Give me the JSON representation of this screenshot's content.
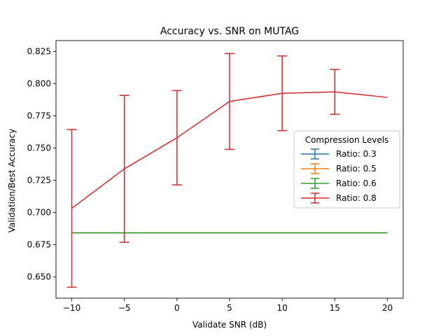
{
  "chart_data": {
    "type": "line",
    "title": "Accuracy vs. SNR on MUTAG",
    "xlabel": "Validate SNR (dB)",
    "ylabel": "Validation/Best Accuracy",
    "x": [
      -10,
      -5,
      0,
      5,
      10,
      15,
      20
    ],
    "x_ticks": [
      -10,
      -5,
      0,
      5,
      10,
      15,
      20
    ],
    "x_tick_labels": [
      "−10",
      "−5",
      "0",
      "5",
      "10",
      "15",
      "20"
    ],
    "y_ticks": [
      0.65,
      0.675,
      0.7,
      0.725,
      0.75,
      0.775,
      0.8,
      0.825
    ],
    "y_tick_labels": [
      "0.650",
      "0.675",
      "0.700",
      "0.725",
      "0.750",
      "0.775",
      "0.800",
      "0.825"
    ],
    "xlim": [
      -11.5,
      21.5
    ],
    "ylim": [
      0.6335,
      0.8334
    ],
    "grid": false,
    "legend": {
      "title": "Compression Levels",
      "placement": "right"
    },
    "series": [
      {
        "name": "Ratio: 0.3",
        "color": "#1f77b4",
        "values": [
          0.6842,
          0.6842,
          0.6842,
          0.6842,
          0.6842,
          0.6842,
          0.6842
        ],
        "errors": [
          0,
          0,
          0,
          0,
          0,
          0,
          0
        ]
      },
      {
        "name": "Ratio: 0.5",
        "color": "#ff7f0e",
        "values": [
          0.6842,
          0.6842,
          0.6842,
          0.6842,
          0.6842,
          0.6842,
          0.6842
        ],
        "errors": [
          0,
          0,
          0,
          0,
          0,
          0,
          0
        ]
      },
      {
        "name": "Ratio: 0.6",
        "color": "#2ca02c",
        "values": [
          0.6842,
          0.6842,
          0.6842,
          0.6842,
          0.6842,
          0.6842,
          0.6842
        ],
        "errors": [
          0,
          0,
          0,
          0,
          0,
          0,
          0
        ]
      },
      {
        "name": "Ratio: 0.8",
        "color": "#d62728",
        "values": [
          0.7032,
          0.7339,
          0.758,
          0.7862,
          0.7925,
          0.7936,
          0.7893
        ],
        "errors": [
          0.0612,
          0.057,
          0.0366,
          0.0372,
          0.029,
          0.0174,
          0
        ]
      }
    ]
  }
}
